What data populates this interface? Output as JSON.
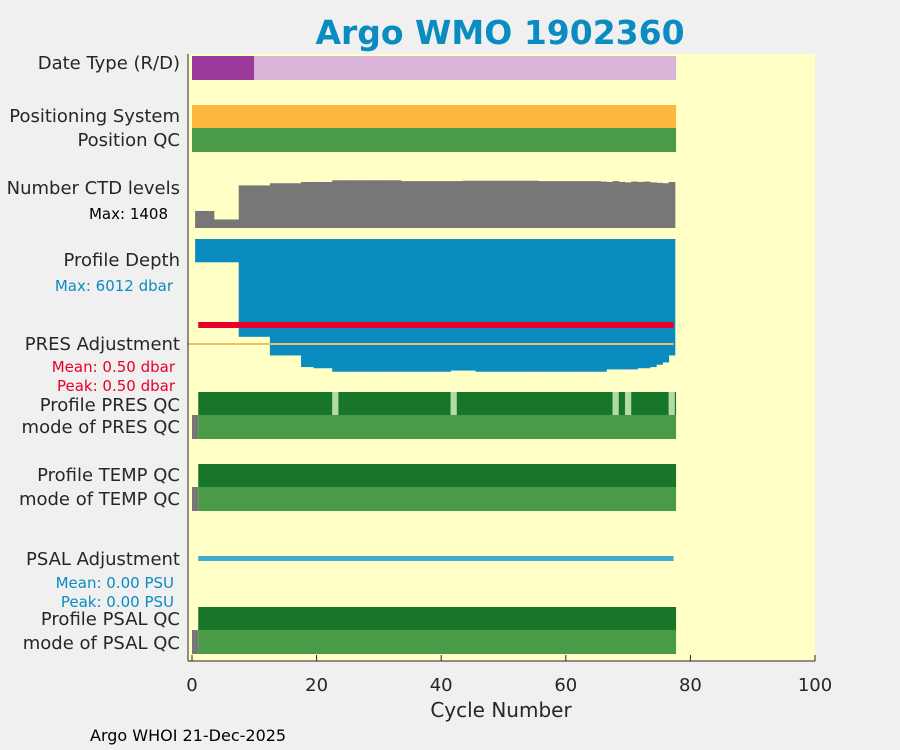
{
  "chart_data": {
    "type": "bar",
    "title": "Argo WMO 1902360",
    "xlabel": "Cycle Number",
    "xlim": [
      0,
      100
    ],
    "xticks": [
      "0",
      "20",
      "40",
      "60",
      "80",
      "100"
    ],
    "n_cycles": 78,
    "rows": [
      {
        "name": "date_type",
        "label": "Date Type (R/D)",
        "segments": [
          {
            "from": 0,
            "to": 10,
            "value": "D",
            "color": "#9a3b9b"
          },
          {
            "from": 10,
            "to": 77.7,
            "value": "R",
            "color": "#dbb5da"
          }
        ]
      },
      {
        "name": "positioning_system",
        "label": "Positioning System",
        "segments": [
          {
            "from": 0,
            "to": 77.7,
            "color": "#fdb73e"
          }
        ]
      },
      {
        "name": "position_qc",
        "label": "Position QC",
        "segments": [
          {
            "from": 0,
            "to": 77.7,
            "color": "#4a9a47"
          }
        ]
      },
      {
        "name": "ctd_levels",
        "label": "Number CTD levels",
        "max_label": "Max: 1408",
        "max": 1408,
        "color": "#777777",
        "values": [
          0,
          400,
          400,
          400,
          200,
          200,
          200,
          200,
          1000,
          1000,
          1000,
          1000,
          1000,
          1050,
          1050,
          1050,
          1050,
          1050,
          1080,
          1080,
          1080,
          1080,
          1080,
          1120,
          1120,
          1120,
          1120,
          1120,
          1120,
          1120,
          1120,
          1120,
          1120,
          1120,
          1100,
          1100,
          1100,
          1100,
          1100,
          1100,
          1100,
          1100,
          1100,
          1100,
          1110,
          1110,
          1110,
          1110,
          1110,
          1110,
          1110,
          1110,
          1110,
          1110,
          1110,
          1110,
          1100,
          1100,
          1100,
          1100,
          1100,
          1100,
          1100,
          1100,
          1100,
          1100,
          1090,
          1080,
          1100,
          1080,
          1070,
          1090,
          1080,
          1090,
          1070,
          1060,
          1050,
          1080
        ]
      },
      {
        "name": "profile_depth",
        "label": "Profile Depth",
        "max_label": "Max: 6012 dbar",
        "max": 6012,
        "color": "#0a8cc0",
        "values": [
          0,
          1000,
          1000,
          1000,
          1000,
          1000,
          1000,
          1000,
          4200,
          4200,
          4200,
          4200,
          4200,
          5000,
          5000,
          5000,
          5000,
          5000,
          5500,
          5500,
          5550,
          5550,
          5550,
          5700,
          5700,
          5700,
          5700,
          5700,
          5700,
          5700,
          5700,
          5700,
          5700,
          5700,
          5700,
          5700,
          5700,
          5700,
          5700,
          5700,
          5700,
          5700,
          5650,
          5650,
          5650,
          5650,
          5700,
          5700,
          5700,
          5700,
          5700,
          5700,
          5700,
          5700,
          5700,
          5700,
          5700,
          5700,
          5700,
          5700,
          5700,
          5700,
          5700,
          5700,
          5700,
          5700,
          5700,
          5600,
          5600,
          5600,
          5600,
          5600,
          5550,
          5550,
          5500,
          5400,
          5300,
          5000
        ]
      },
      {
        "name": "pres_adjustment",
        "label": "PRES Adjustment",
        "mean_label": "Mean: 0.50 dbar",
        "peak_label": "Peak: 0.50 dbar",
        "mean": 0.5,
        "peak": 0.5,
        "from": 1,
        "to": 77.3
      },
      {
        "name": "profile_pres_qc",
        "label": "Profile PRES QC",
        "base_color": "#177628",
        "light_color": "#b4dba6",
        "from": 1,
        "to": 77.7,
        "light_cycles": [
          23,
          42,
          68,
          70,
          77
        ]
      },
      {
        "name": "mode_pres_qc",
        "label": "mode of PRES QC",
        "segments": [
          {
            "from": 0,
            "to": 1,
            "color": "#777777"
          },
          {
            "from": 1,
            "to": 77.7,
            "color": "#4a9a47"
          }
        ]
      },
      {
        "name": "profile_temp_qc",
        "label": "Profile TEMP QC",
        "segments": [
          {
            "from": 1,
            "to": 77.7,
            "color": "#177628"
          }
        ]
      },
      {
        "name": "mode_temp_qc",
        "label": "mode of TEMP QC",
        "segments": [
          {
            "from": 0,
            "to": 1,
            "color": "#777777"
          },
          {
            "from": 1,
            "to": 77.7,
            "color": "#4a9a47"
          }
        ]
      },
      {
        "name": "psal_adjustment",
        "label": "PSAL Adjustment",
        "mean_label": "Mean: 0.00 PSU",
        "peak_label": "Peak: 0.00 PSU",
        "mean": 0.0,
        "peak": 0.0,
        "from": 1,
        "to": 77.3
      },
      {
        "name": "profile_psal_qc",
        "label": "Profile PSAL QC",
        "segments": [
          {
            "from": 1,
            "to": 77.7,
            "color": "#177628"
          }
        ]
      },
      {
        "name": "mode_psal_qc",
        "label": "mode of PSAL QC",
        "segments": [
          {
            "from": 0,
            "to": 1,
            "color": "#777777"
          },
          {
            "from": 1,
            "to": 77.7,
            "color": "#4a9a47"
          }
        ]
      }
    ]
  },
  "footer": "Argo WHOI 21-Dec-2025",
  "colors": {
    "plot_bg": "#ffffc6",
    "figure_bg": "#f0f0f0",
    "title": "#0a8cc0",
    "pres_line": "#e8002a",
    "psal_line": "#3fa9cf",
    "ref_line": "#f0c060"
  }
}
